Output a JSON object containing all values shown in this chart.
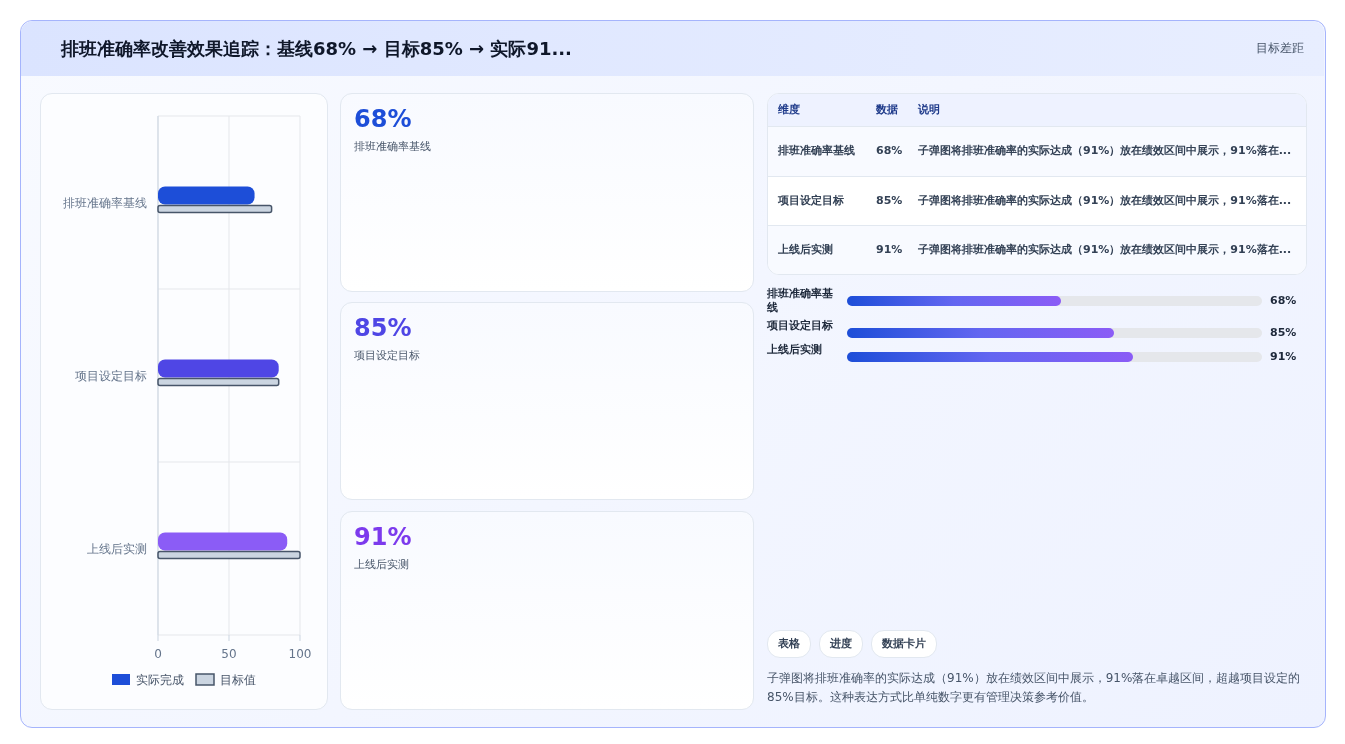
{
  "chart_data": [
    {
      "type": "bar",
      "orientation": "horizontal",
      "title": "排班准确率改善效果追踪：基线68% → 目标85% → 实际91...",
      "annotations": [
        "目标差距"
      ],
      "categories": [
        "排班准确率基线",
        "项目设定目标",
        "上线后实测"
      ],
      "series": [
        {
          "name": "实际完成",
          "color": "#1d4ed8",
          "colors": [
            "#1d4ed8",
            "#4f46e5",
            "#8b5cf6"
          ],
          "values": [
            68,
            85,
            91
          ]
        },
        {
          "name": "目标值",
          "color": "#cbd5e1",
          "values": [
            80,
            85,
            100
          ]
        }
      ],
      "xlim": [
        0,
        100
      ],
      "xticks": [
        0,
        50,
        100
      ],
      "grid": true,
      "legend": "bottom"
    },
    {
      "type": "other",
      "annotations": [
        "68%",
        "排班准确率基线",
        "85%",
        "项目设定目标",
        "91%",
        "上线后实测"
      ]
    },
    {
      "type": "other",
      "annotations": [
        "维度",
        "数据",
        "说明",
        "排班准确率基线",
        "68%",
        "子弹图将排班准确率的实际达成（91%）放在绩效区间中展示，91%落在...",
        "项目设定目标",
        "85%",
        "子弹图将排班准确率的实际达成（91%）放在绩效区间中展示，91%落在...",
        "上线后实测",
        "91%",
        "子弹图将排班准确率的实际达成（91%）放在绩效区间中展示，91%落在..."
      ]
    },
    {
      "type": "bar",
      "orientation": "horizontal",
      "categories": [
        "排班准确率基线",
        "项目设定目标",
        "上线后实测"
      ],
      "values": [
        68,
        85,
        91
      ],
      "value_labels": [
        "68%",
        "85%",
        "91%"
      ],
      "color": "#6366f1",
      "xlim": [
        0,
        132
      ],
      "annotations": [
        "表格",
        "进度",
        "数据卡片",
        "子弹图将排班准确率的实际达成（91%）放在绩效区间中展示，91%落在卓越区间，超越项目设定的85%目标。这种表达方式比单纯数字更有管理决策参考价值。"
      ]
    }
  ]
}
